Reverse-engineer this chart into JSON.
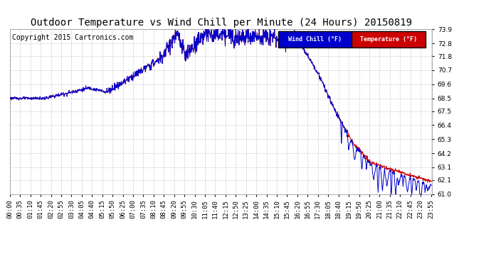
{
  "title": "Outdoor Temperature vs Wind Chill per Minute (24 Hours) 20150819",
  "copyright": "Copyright 2015 Cartronics.com",
  "wind_chill_label": "Wind Chill (°F)",
  "temp_label": "Temperature (°F)",
  "wind_chill_color": "#0000cc",
  "temp_color": "#cc0000",
  "legend_wind_bg": "#0000cc",
  "legend_temp_bg": "#cc0000",
  "legend_text_color": "#ffffff",
  "background_color": "#ffffff",
  "grid_color": "#cccccc",
  "ylim_min": 61.0,
  "ylim_max": 73.9,
  "yticks": [
    61.0,
    62.1,
    63.1,
    64.2,
    65.3,
    66.4,
    67.5,
    68.5,
    69.6,
    70.7,
    71.8,
    72.8,
    73.9
  ],
  "total_minutes": 1440,
  "x_tick_interval": 35,
  "title_fontsize": 10,
  "axis_fontsize": 6.5,
  "copyright_fontsize": 7
}
